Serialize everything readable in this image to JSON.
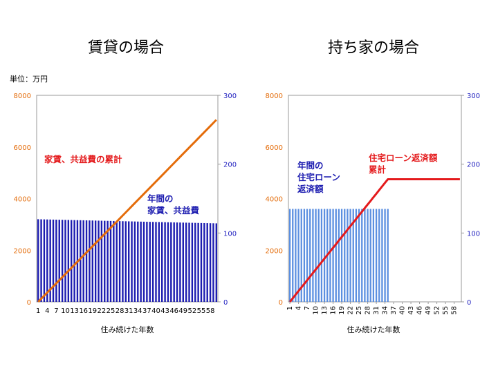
{
  "unit_label": "単位：万円",
  "colors": {
    "left_axis": "#e46c0a",
    "right_axis": "#1f1fbf",
    "rent_line": "#e46c0a",
    "rent_bars": "#1c1cb0",
    "loan_line": "#e41a1c",
    "loan_bars": "#5b8fe0",
    "annotation_red": "#e41a1c",
    "annotation_blue": "#1c1cb0",
    "grid": "#999999"
  },
  "chart_data": [
    {
      "type": "bar+line",
      "title": "賃貸の場合",
      "xlabel": "住み続けた年数",
      "x": [
        1,
        2,
        3,
        4,
        5,
        6,
        7,
        8,
        9,
        10,
        11,
        12,
        13,
        14,
        15,
        16,
        17,
        18,
        19,
        20,
        21,
        22,
        23,
        24,
        25,
        26,
        27,
        28,
        29,
        30,
        31,
        32,
        33,
        34,
        35,
        36,
        37,
        38,
        39,
        40,
        41,
        42,
        43,
        44,
        45,
        46,
        47,
        48,
        49,
        50,
        51,
        52,
        53,
        54,
        55,
        56,
        57,
        58,
        59,
        60
      ],
      "x_tick_labels": [
        "1",
        "4",
        "7",
        "10",
        "13",
        "16",
        "19",
        "22",
        "25",
        "28",
        "31",
        "34",
        "37",
        "40",
        "43",
        "46",
        "49",
        "52",
        "55",
        "58"
      ],
      "y_left": {
        "ticks": [
          0,
          2000,
          4000,
          6000,
          8000
        ],
        "ylim": [
          0,
          8000
        ]
      },
      "y_right": {
        "ticks": [
          0,
          100,
          200,
          300
        ],
        "ylim": [
          0,
          300
        ]
      },
      "series": [
        {
          "name": "家賃、共益費の累計",
          "kind": "line",
          "axis": "left",
          "values_start_end": [
            0,
            7050
          ],
          "values_note_type": "linear"
        },
        {
          "name": "年間の家賃、共益費",
          "kind": "bar",
          "axis": "right",
          "values_start_end": [
            120,
            114
          ]
        }
      ],
      "annotations": [
        {
          "lines": [
            "家賃、共益費の累計"
          ],
          "color": "annotation_red"
        },
        {
          "lines": [
            "年間の",
            "家賃、共益費"
          ],
          "color": "annotation_blue"
        }
      ]
    },
    {
      "type": "bar+line",
      "title": "持ち家の場合",
      "xlabel": "住み続けた年数",
      "x": [
        1,
        2,
        3,
        4,
        5,
        6,
        7,
        8,
        9,
        10,
        11,
        12,
        13,
        14,
        15,
        16,
        17,
        18,
        19,
        20,
        21,
        22,
        23,
        24,
        25,
        26,
        27,
        28,
        29,
        30,
        31,
        32,
        33,
        34,
        35,
        36,
        37,
        38,
        39,
        40,
        41,
        42,
        43,
        44,
        45,
        46,
        47,
        48,
        49,
        50,
        51,
        52,
        53,
        54,
        55,
        56,
        57,
        58,
        59,
        60
      ],
      "x_tick_labels": [
        "1",
        "4",
        "7",
        "10",
        "13",
        "16",
        "19",
        "22",
        "25",
        "28",
        "31",
        "34",
        "37",
        "40",
        "43",
        "46",
        "49",
        "52",
        "55",
        "58"
      ],
      "y_left": {
        "ticks": [
          0,
          2000,
          4000,
          6000,
          8000
        ],
        "ylim": [
          0,
          8000
        ]
      },
      "y_right": {
        "ticks": [
          0,
          100,
          200,
          300
        ],
        "ylim": [
          0,
          300
        ]
      },
      "series": [
        {
          "name": "住宅ローン返済額累計",
          "kind": "line",
          "axis": "left",
          "values_start": 0,
          "values_cap": 4750,
          "cap_year": 35
        },
        {
          "name": "年間の住宅ローン返済額",
          "kind": "bar",
          "axis": "right",
          "value": 135,
          "years": 35
        }
      ],
      "annotations": [
        {
          "lines": [
            "住宅ローン返済額",
            "累計"
          ],
          "color": "annotation_red"
        },
        {
          "lines": [
            "年間の",
            "住宅ローン",
            "返済額"
          ],
          "color": "annotation_blue"
        }
      ]
    }
  ]
}
